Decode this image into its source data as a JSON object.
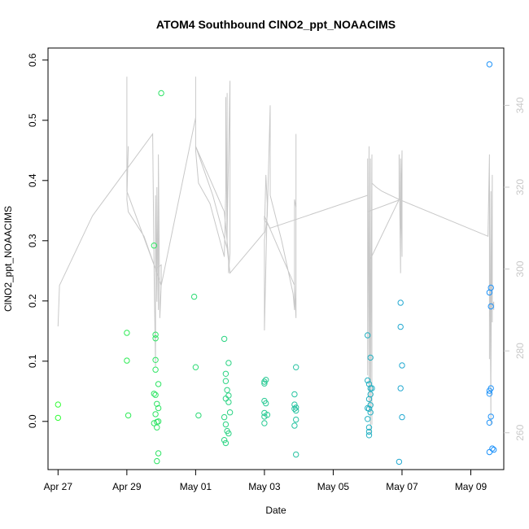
{
  "chart_data": {
    "type": "scatter",
    "title": "ATOM4 Southbound ClNO2_ppt_NOAACIMS",
    "xlabel": "Date",
    "ylabel": "ClNO2_ppt_NOAACIMS",
    "ylabel_right": "",
    "x_ticks": [
      "Apr 27",
      "Apr 29",
      "May 01",
      "May 03",
      "May 05",
      "May 07",
      "May 09"
    ],
    "x_tick_dates": [
      "2018-04-27",
      "2018-04-29",
      "2018-05-01",
      "2018-05-03",
      "2018-05-05",
      "2018-05-07",
      "2018-05-09"
    ],
    "xlim": [
      "2018-04-26T17:00",
      "2018-05-09T23:00"
    ],
    "y_ticks": [
      "0.0",
      "0.1",
      "0.2",
      "0.3",
      "0.4",
      "0.5",
      "0.6"
    ],
    "ylim": [
      -0.08,
      0.62
    ],
    "y2_ticks": [
      "260",
      "280",
      "300",
      "320",
      "340"
    ],
    "y2lim": [
      251,
      354
    ],
    "grid": false,
    "legend": "none",
    "colors": {
      "points_start": "#33ff33",
      "points_end": "#1e90ff",
      "line": "#c8c8c8",
      "axis": "#000000"
    },
    "series": [
      {
        "type": "scatter",
        "points": [
          [
            "2018-04-27T00:00",
            0.028
          ],
          [
            "2018-04-27T00:00",
            0.006
          ],
          [
            "2018-04-29T00:00",
            0.147
          ],
          [
            "2018-04-29T00:00",
            0.101
          ],
          [
            "2018-04-29T01:00",
            0.01
          ],
          [
            "2018-04-29T19:00",
            0.292
          ],
          [
            "2018-04-29T19:00",
            0.046
          ],
          [
            "2018-04-29T20:00",
            0.144
          ],
          [
            "2018-04-29T20:00",
            0.138
          ],
          [
            "2018-04-29T20:00",
            0.102
          ],
          [
            "2018-04-29T20:00",
            0.086
          ],
          [
            "2018-04-29T20:00",
            0.044
          ],
          [
            "2018-04-29T20:00",
            0.012
          ],
          [
            "2018-04-29T19:00",
            -0.003
          ],
          [
            "2018-04-29T21:00",
            0.029
          ],
          [
            "2018-04-29T22:00",
            0.062
          ],
          [
            "2018-04-29T22:00",
            0.022
          ],
          [
            "2018-04-29T21:00",
            -0.001
          ],
          [
            "2018-04-29T22:00",
            0.0
          ],
          [
            "2018-04-29T21:00",
            -0.01
          ],
          [
            "2018-04-29T22:00",
            -0.053
          ],
          [
            "2018-04-29T21:00",
            -0.066
          ],
          [
            "2018-04-30T00:00",
            0.545
          ],
          [
            "2018-04-30T23:00",
            0.207
          ],
          [
            "2018-05-01T00:00",
            0.09
          ],
          [
            "2018-05-01T02:00",
            0.01
          ],
          [
            "2018-05-01T20:00",
            0.137
          ],
          [
            "2018-05-01T23:00",
            0.097
          ],
          [
            "2018-05-01T21:00",
            0.079
          ],
          [
            "2018-05-01T21:00",
            0.067
          ],
          [
            "2018-05-01T22:00",
            0.052
          ],
          [
            "2018-05-01T21:00",
            0.038
          ],
          [
            "2018-05-01T23:00",
            0.043
          ],
          [
            "2018-05-01T23:00",
            0.032
          ],
          [
            "2018-05-02T00:00",
            0.015
          ],
          [
            "2018-05-01T20:00",
            0.007
          ],
          [
            "2018-05-01T21:00",
            -0.005
          ],
          [
            "2018-05-01T22:00",
            -0.016
          ],
          [
            "2018-05-01T23:00",
            -0.02
          ],
          [
            "2018-05-01T20:00",
            -0.031
          ],
          [
            "2018-05-01T21:00",
            -0.036
          ],
          [
            "2018-05-03T00:00",
            0.066
          ],
          [
            "2018-05-03T01:00",
            0.069
          ],
          [
            "2018-05-03T00:00",
            0.063
          ],
          [
            "2018-05-03T00:00",
            0.034
          ],
          [
            "2018-05-03T01:00",
            0.03
          ],
          [
            "2018-05-03T00:00",
            0.014
          ],
          [
            "2018-05-03T00:00",
            0.008
          ],
          [
            "2018-05-03T02:00",
            0.011
          ],
          [
            "2018-05-03T00:00",
            -0.003
          ],
          [
            "2018-05-03T22:00",
            0.09
          ],
          [
            "2018-05-03T21:00",
            0.045
          ],
          [
            "2018-05-03T21:00",
            0.028
          ],
          [
            "2018-05-03T22:00",
            0.023
          ],
          [
            "2018-05-03T21:00",
            0.021
          ],
          [
            "2018-05-03T22:00",
            0.018
          ],
          [
            "2018-05-03T22:00",
            0.003
          ],
          [
            "2018-05-03T21:00",
            -0.007
          ],
          [
            "2018-05-03T22:00",
            -0.055
          ],
          [
            "2018-05-06T00:00",
            0.143
          ],
          [
            "2018-05-06T02:00",
            0.106
          ],
          [
            "2018-05-06T00:00",
            0.068
          ],
          [
            "2018-05-06T01:00",
            0.062
          ],
          [
            "2018-05-06T02:00",
            0.055
          ],
          [
            "2018-05-06T03:00",
            0.055
          ],
          [
            "2018-05-06T02:00",
            0.045
          ],
          [
            "2018-05-06T01:00",
            0.037
          ],
          [
            "2018-05-06T02:00",
            0.027
          ],
          [
            "2018-05-06T00:00",
            0.022
          ],
          [
            "2018-05-06T01:00",
            0.021
          ],
          [
            "2018-05-06T02:00",
            0.015
          ],
          [
            "2018-05-06T00:00",
            0.004
          ],
          [
            "2018-05-06T01:00",
            -0.01
          ],
          [
            "2018-05-06T01:00",
            -0.017
          ],
          [
            "2018-05-06T01:00",
            -0.023
          ],
          [
            "2018-05-06T23:00",
            0.197
          ],
          [
            "2018-05-06T23:00",
            0.157
          ],
          [
            "2018-05-07T00:00",
            0.093
          ],
          [
            "2018-05-06T23:00",
            0.055
          ],
          [
            "2018-05-07T00:00",
            0.007
          ],
          [
            "2018-05-06T22:00",
            -0.067
          ],
          [
            "2018-05-09T13:00",
            0.593
          ],
          [
            "2018-05-09T14:00",
            0.222
          ],
          [
            "2018-05-09T13:00",
            0.214
          ],
          [
            "2018-05-09T14:00",
            0.191
          ],
          [
            "2018-05-09T14:00",
            0.055
          ],
          [
            "2018-05-09T13:00",
            0.051
          ],
          [
            "2018-05-09T13:00",
            0.046
          ],
          [
            "2018-05-09T14:00",
            0.008
          ],
          [
            "2018-05-09T13:00",
            -0.002
          ],
          [
            "2018-05-09T15:00",
            -0.045
          ],
          [
            "2018-05-09T16:00",
            -0.047
          ],
          [
            "2018-05-09T13:00",
            -0.051
          ]
        ]
      },
      {
        "type": "line",
        "axis": "right",
        "points": [
          [
            "2018-04-27T00:00",
            286
          ],
          [
            "2018-04-27T01:00",
            296
          ],
          [
            "2018-04-28T00:00",
            313
          ],
          [
            "2018-04-29T18:00",
            333
          ],
          [
            "2018-04-29T19:00",
            300
          ],
          [
            "2018-04-29T20:00",
            276
          ],
          [
            "2018-04-29T20:00",
            318
          ],
          [
            "2018-04-29T21:00",
            292
          ],
          [
            "2018-04-29T21:00",
            320
          ],
          [
            "2018-04-29T22:00",
            290
          ],
          [
            "2018-04-29T22:00",
            324
          ],
          [
            "2018-04-29T22:00",
            291
          ],
          [
            "2018-04-29T22:00",
            328
          ],
          [
            "2018-04-29T23:00",
            288
          ],
          [
            "2018-04-30T00:00",
            296
          ],
          [
            "2018-04-30T00:00",
            301
          ],
          [
            "2018-04-29T20:00",
            300
          ],
          [
            "2018-04-29T00:00",
            319
          ],
          [
            "2018-04-29T00:00",
            347
          ],
          [
            "2018-04-29T00:00",
            320
          ],
          [
            "2018-04-29T01:00",
            330
          ],
          [
            "2018-04-29T00:00",
            317
          ],
          [
            "2018-04-29T01:00",
            314
          ],
          [
            "2018-04-29T12:00",
            308
          ],
          [
            "2018-04-29T18:00",
            302
          ],
          [
            "2018-04-30T00:00",
            296
          ],
          [
            "2018-05-01T00:00",
            337
          ],
          [
            "2018-05-01T00:00",
            347
          ],
          [
            "2018-05-01T00:00",
            329
          ],
          [
            "2018-05-01T02:00",
            321
          ],
          [
            "2018-05-01T10:00",
            316
          ],
          [
            "2018-05-01T20:00",
            303
          ],
          [
            "2018-05-01T21:00",
            319
          ],
          [
            "2018-05-01T21:00",
            342
          ],
          [
            "2018-05-01T22:00",
            305
          ],
          [
            "2018-05-01T22:00",
            343
          ],
          [
            "2018-05-01T22:00",
            309
          ],
          [
            "2018-05-02T00:00",
            346
          ],
          [
            "2018-05-02T00:00",
            304
          ],
          [
            "2018-05-01T23:00",
            299
          ],
          [
            "2018-05-01T23:00",
            303
          ],
          [
            "2018-05-01T20:00",
            314
          ],
          [
            "2018-05-01T00:00",
            330
          ],
          [
            "2018-05-01T12:00",
            318
          ],
          [
            "2018-05-01T22:00",
            305
          ],
          [
            "2018-05-02T00:00",
            299
          ],
          [
            "2018-05-03T00:00",
            309
          ],
          [
            "2018-05-03T01:00",
            323
          ],
          [
            "2018-05-03T02:00",
            316
          ],
          [
            "2018-05-03T00:00",
            285
          ],
          [
            "2018-05-03T00:00",
            307
          ],
          [
            "2018-05-03T02:00",
            313
          ],
          [
            "2018-05-03T04:00",
            340
          ],
          [
            "2018-05-03T04:00",
            318
          ],
          [
            "2018-05-03T12:00",
            307
          ],
          [
            "2018-05-03T20:00",
            294
          ],
          [
            "2018-05-03T21:00",
            290
          ],
          [
            "2018-05-03T21:00",
            317
          ],
          [
            "2018-05-03T22:00",
            315
          ],
          [
            "2018-05-03T22:00",
            333
          ],
          [
            "2018-05-03T22:00",
            294
          ],
          [
            "2018-05-03T22:00",
            288
          ],
          [
            "2018-05-03T21:00",
            296
          ],
          [
            "2018-05-03T00:00",
            313
          ],
          [
            "2018-05-03T00:00",
            312
          ],
          [
            "2018-05-03T04:00",
            310
          ],
          [
            "2018-05-06T00:00",
            318
          ],
          [
            "2018-05-06T00:00",
            327
          ],
          [
            "2018-05-06T00:00",
            274
          ],
          [
            "2018-05-06T01:00",
            330
          ],
          [
            "2018-05-06T01:00",
            265
          ],
          [
            "2018-05-06T02:00",
            327
          ],
          [
            "2018-05-06T02:00",
            260
          ],
          [
            "2018-05-06T03:00",
            328
          ],
          [
            "2018-05-06T03:00",
            262
          ],
          [
            "2018-05-06T03:00",
            321
          ],
          [
            "2018-05-06T06:00",
            320
          ],
          [
            "2018-05-06T10:00",
            319
          ],
          [
            "2018-05-06T22:00",
            317
          ],
          [
            "2018-05-06T22:00",
            328
          ],
          [
            "2018-05-06T23:00",
            299
          ],
          [
            "2018-05-06T23:00",
            327
          ],
          [
            "2018-05-07T00:00",
            303
          ],
          [
            "2018-05-07T00:00",
            329
          ],
          [
            "2018-05-06T23:00",
            307
          ],
          [
            "2018-05-06T23:00",
            317
          ],
          [
            "2018-05-06T00:00",
            314
          ],
          [
            "2018-05-06T00:00",
            296
          ],
          [
            "2018-05-06T00:00",
            301
          ],
          [
            "2018-05-06T22:00",
            317
          ],
          [
            "2018-05-09T12:00",
            308
          ],
          [
            "2018-05-09T13:00",
            328
          ],
          [
            "2018-05-09T13:00",
            278
          ],
          [
            "2018-05-09T13:00",
            323
          ],
          [
            "2018-05-09T14:00",
            262
          ],
          [
            "2018-05-09T14:00",
            319
          ],
          [
            "2018-05-09T14:00",
            274
          ],
          [
            "2018-05-09T15:00",
            323
          ],
          [
            "2018-05-09T15:00",
            287
          ],
          [
            "2018-05-09T15:00",
            321
          ],
          [
            "2018-05-09T15:00",
            291
          ],
          [
            "2018-05-09T16:00",
            292
          ],
          [
            "2018-05-09T16:00",
            290
          ]
        ]
      }
    ]
  }
}
